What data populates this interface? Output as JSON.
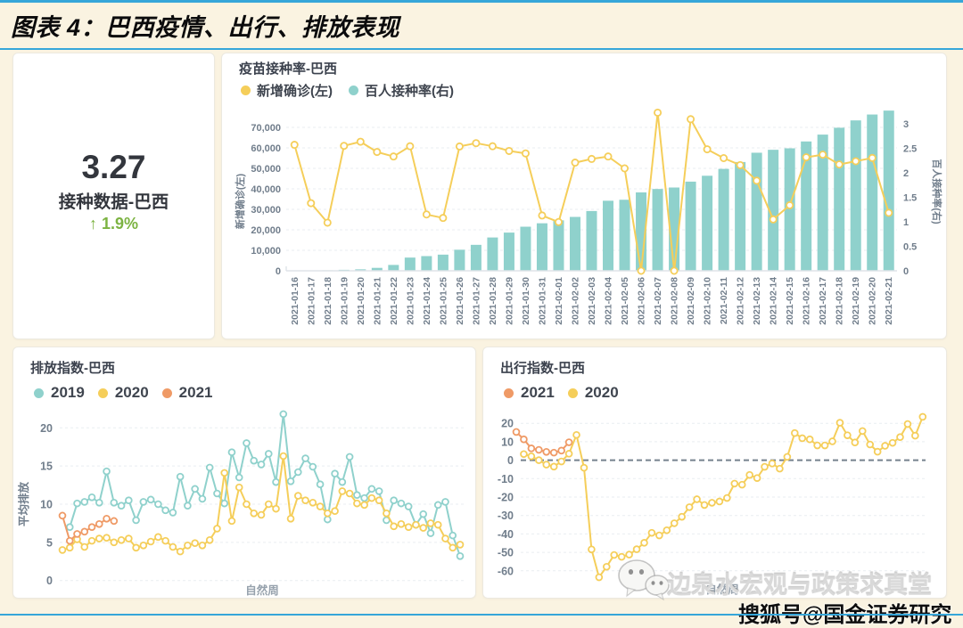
{
  "header": {
    "title": "图表 4：巴西疫情、出行、排放表现"
  },
  "colors": {
    "background": "#FAF3E1",
    "accent_blue": "#36A6D9",
    "teal": "#8FD1CC",
    "yellow": "#F5CE5A",
    "orange": "#EF9A66",
    "green": "#7CB342",
    "dark_text": "#33363D",
    "tick_text": "#707D8B",
    "gridline": "#E9EDF1",
    "zero_line": "#76828E",
    "axis_line": "#DFE3E8"
  },
  "kpi": {
    "value": "3.27",
    "label": "接种数据-巴西",
    "arrow": "↑",
    "delta": "1.9%"
  },
  "watermark": {
    "logo_icon": "wechat-logo",
    "brand": "边泉水宏观与政策求真堂",
    "source": "搜狐号@国金证券研究"
  },
  "chart_data": [
    {
      "id": "vaccination",
      "type": "bar",
      "title": "疫苗接种率-巴西",
      "legend_position": "top-left",
      "grid": true,
      "categories": [
        "2021-01-16",
        "2021-01-17",
        "2021-01-18",
        "2021-01-19",
        "2021-01-20",
        "2021-01-21",
        "2021-01-22",
        "2021-01-23",
        "2021-01-24",
        "2021-01-25",
        "2021-01-26",
        "2021-01-27",
        "2021-01-28",
        "2021-01-29",
        "2021-01-30",
        "2021-01-31",
        "2021-02-01",
        "2021-02-02",
        "2021-02-03",
        "2021-02-04",
        "2021-02-05",
        "2021-02-06",
        "2021-02-07",
        "2021-02-08",
        "2021-02-09",
        "2021-02-10",
        "2021-02-11",
        "2021-02-12",
        "2021-02-13",
        "2021-02-14",
        "2021-02-15",
        "2021-02-16",
        "2021-02-17",
        "2021-02-18",
        "2021-02-19",
        "2021-02-20",
        "2021-02-21"
      ],
      "series": [
        {
          "name": "新增确诊(左)",
          "type": "line",
          "color": "#F5CE5A",
          "axis": "left",
          "values": [
            61500,
            33000,
            23500,
            61000,
            63000,
            58000,
            55800,
            60800,
            27500,
            25800,
            60700,
            62300,
            60800,
            58500,
            57300,
            27000,
            23800,
            52800,
            54600,
            55800,
            50000,
            0,
            77200,
            0,
            74000,
            59300,
            55000,
            51600,
            44000,
            25100,
            32000,
            55400,
            56700,
            51900,
            53500,
            55100,
            28300
          ]
        },
        {
          "name": "百人接种率(右)",
          "type": "bar",
          "color": "#8FD1CC",
          "axis": "right",
          "values": [
            0,
            0.005,
            0.01,
            0.02,
            0.03,
            0.06,
            0.12,
            0.27,
            0.3,
            0.33,
            0.43,
            0.53,
            0.68,
            0.78,
            0.9,
            0.97,
            1.03,
            1.1,
            1.22,
            1.43,
            1.45,
            1.6,
            1.67,
            1.7,
            1.82,
            1.94,
            2.08,
            2.22,
            2.41,
            2.47,
            2.5,
            2.64,
            2.78,
            2.92,
            3.07,
            3.19,
            3.27
          ]
        }
      ],
      "left_axis": {
        "name": "新增确诊(左)",
        "min": 0,
        "max": 70000,
        "ticks": [
          "0",
          "10,000",
          "20,000",
          "30,000",
          "40,000",
          "50,000",
          "60,000",
          "70,000"
        ]
      },
      "right_axis": {
        "name": "百人接种率(右)",
        "min": 0,
        "max": 3,
        "ticks": [
          "0",
          "0.5",
          "1",
          "1.5",
          "2",
          "2.5",
          "3"
        ]
      }
    },
    {
      "id": "emission",
      "type": "line",
      "title": "排放指数-巴西",
      "xlabel": "自然周",
      "ylabel": "平均排放",
      "ylim": [
        0,
        20
      ],
      "yticks": [
        "0",
        "5",
        "10",
        "15",
        "20"
      ],
      "grid": true,
      "legend_position": "top-left",
      "series": [
        {
          "name": "2019",
          "color": "#8FD1CC",
          "values": [
            null,
            7.0,
            10.1,
            10.3,
            10.9,
            10.2,
            14.3,
            10.2,
            9.8,
            10.5,
            7.9,
            10.3,
            10.6,
            10.0,
            9.2,
            8.9,
            13.6,
            9.8,
            12.0,
            10.7,
            14.8,
            11.4,
            10.1,
            16.8,
            13.5,
            18.0,
            15.7,
            15.2,
            16.6,
            12.9,
            21.8,
            13.0,
            14.2,
            16.0,
            14.9,
            12.6,
            8.0,
            14.0,
            12.9,
            16.2,
            11.2,
            10.8,
            12.0,
            11.7,
            7.9,
            10.5,
            10.1,
            9.7,
            7.3,
            8.7,
            6.2,
            9.9,
            10.3,
            5.9,
            3.2
          ]
        },
        {
          "name": "2020",
          "color": "#F5CE5A",
          "values": [
            4.0,
            4.3,
            5.4,
            4.4,
            5.2,
            5.5,
            5.6,
            5.0,
            5.3,
            5.5,
            4.3,
            4.6,
            5.1,
            5.7,
            5.2,
            4.4,
            3.8,
            4.6,
            4.9,
            4.6,
            5.3,
            6.8,
            14.1,
            7.8,
            12.2,
            10.0,
            8.8,
            8.6,
            10.0,
            9.4,
            16.3,
            8.1,
            11.1,
            10.5,
            10.2,
            9.7,
            8.8,
            9.1,
            11.7,
            11.4,
            10.1,
            9.9,
            10.8,
            10.5,
            8.8,
            7.1,
            7.4,
            7.0,
            7.3,
            6.9,
            7.5,
            7.3,
            5.5,
            4.3,
            4.7
          ]
        },
        {
          "name": "2021",
          "color": "#EF9A66",
          "values": [
            8.5,
            5.2,
            6.1,
            6.4,
            7.0,
            7.4,
            8.1,
            7.8
          ]
        }
      ]
    },
    {
      "id": "travel",
      "type": "line",
      "title": "出行指数-巴西",
      "xlabel": "自然周",
      "ylim": [
        -65,
        25
      ],
      "yticks": [
        "20",
        "10",
        "0",
        "-10",
        "-20",
        "-30",
        "-40",
        "-50",
        "-60"
      ],
      "zero_line": "dashed",
      "grid": true,
      "legend_position": "top-left",
      "series": [
        {
          "name": "2021",
          "color": "#EF9A66",
          "values": [
            15.3,
            11.3,
            6.4,
            5.6,
            4.5,
            4.1,
            5.2,
            9.7
          ]
        },
        {
          "name": "2020",
          "color": "#F5CE5A",
          "values": [
            null,
            3.3,
            2.1,
            0,
            -2.4,
            -3.5,
            -0.7,
            3.5,
            13.7,
            -4.1,
            -48.4,
            -63.5,
            -57.8,
            -51.4,
            -52.4,
            -51.2,
            -48.3,
            -44.8,
            -39.4,
            -40.8,
            -38.0,
            -34.2,
            -30.7,
            -25.5,
            -21.2,
            -24.3,
            -23.1,
            -22.4,
            -20.5,
            -12.7,
            -13.3,
            -8.0,
            -9.7,
            -3.6,
            -1.8,
            -4.6,
            1.8,
            14.7,
            11.9,
            11.3,
            8.0,
            8.0,
            10.2,
            20.3,
            13.5,
            9.6,
            15.8,
            8.5,
            4.6,
            7.8,
            9.4,
            12.5,
            19.6,
            13.3,
            23.5
          ]
        }
      ]
    }
  ]
}
